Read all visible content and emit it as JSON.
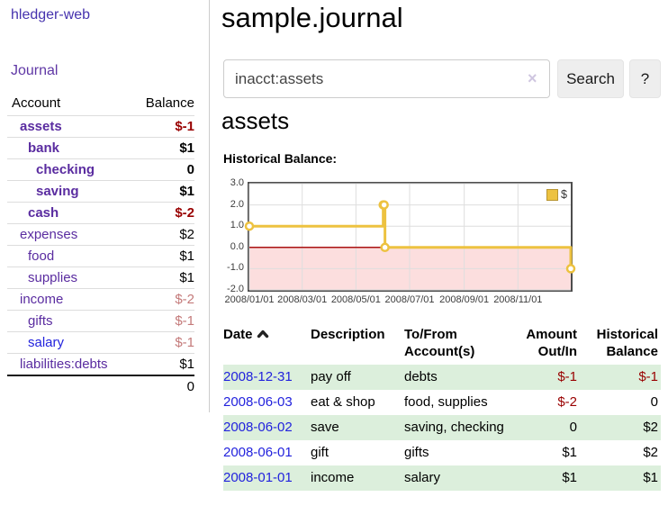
{
  "colors": {
    "link_purple": "#5a2ca0",
    "link_blue": "#2222dd",
    "neg_strong": "#990000",
    "neg_faded": "#c47a7a",
    "row_green": "#dcefdc",
    "series_gold": "#edc240",
    "chart_neg_bg": "#fcdede",
    "chart_zero": "#aa1111"
  },
  "sidebar": {
    "brand": "hledger-web",
    "journal_link": "Journal",
    "accounts": {
      "headers": {
        "account": "Account",
        "balance": "Balance"
      },
      "rows": [
        {
          "name": "assets",
          "depth": 1,
          "bold": true,
          "balance": "$-1"
        },
        {
          "name": "bank",
          "depth": 2,
          "bold": true,
          "balance": "$1"
        },
        {
          "name": "checking",
          "depth": 3,
          "bold": true,
          "balance": "0"
        },
        {
          "name": "saving",
          "depth": 3,
          "bold": true,
          "balance": "$1"
        },
        {
          "name": "cash",
          "depth": 2,
          "bold": true,
          "balance": "$-2"
        },
        {
          "name": "expenses",
          "depth": 1,
          "bold": false,
          "balance": "$2"
        },
        {
          "name": "food",
          "depth": 2,
          "bold": false,
          "balance": "$1"
        },
        {
          "name": "supplies",
          "depth": 2,
          "bold": false,
          "balance": "$1"
        },
        {
          "name": "income",
          "depth": 1,
          "bold": false,
          "balance": "$-2"
        },
        {
          "name": "gifts",
          "depth": 2,
          "bold": false,
          "balance": "$-1"
        },
        {
          "name": "salary",
          "depth": 2,
          "bold": false,
          "balance": "$-1",
          "link_style": "unvisited"
        },
        {
          "name": "liabilities:debts",
          "depth": 1,
          "bold": false,
          "balance": "$1"
        }
      ],
      "total": "0"
    }
  },
  "main": {
    "title": "sample.journal",
    "search": {
      "value": "inacct:assets",
      "clear_icon": "×",
      "search_button": "Search",
      "help_button": "?"
    },
    "account_heading": "assets",
    "chart_heading": "Historical Balance:"
  },
  "chart_data": {
    "type": "line",
    "step": true,
    "title": "Historical Balance:",
    "series": [
      {
        "name": "$",
        "color": "#edc240",
        "points": [
          [
            "2008-01-01",
            1.0
          ],
          [
            "2008-06-01",
            2.0
          ],
          [
            "2008-06-02",
            2.0
          ],
          [
            "2008-06-03",
            0.0
          ],
          [
            "2008-12-31",
            -1.0
          ]
        ]
      }
    ],
    "x_range": [
      "2008-01-01",
      "2008-12-31"
    ],
    "y_range": [
      -2.0,
      3.0
    ],
    "x_ticks": [
      "2008/01/01",
      "2008/03/01",
      "2008/05/01",
      "2008/07/01",
      "2008/09/01",
      "2008/11/01"
    ],
    "y_ticks": [
      3.0,
      2.0,
      1.0,
      0.0,
      -1.0,
      -2.0
    ],
    "grid": true,
    "negative_region_color": "#fcdede",
    "zero_line_color": "#aa1111",
    "legend": {
      "position": "top-right",
      "label": "$"
    }
  },
  "register": {
    "headers": [
      {
        "label": "Date",
        "sort": "ascending"
      },
      {
        "label": "Description"
      },
      {
        "label": "To/From Account(s)"
      },
      {
        "label": "Amount Out/In",
        "align": "right"
      },
      {
        "label": "Historical Balance",
        "align": "right"
      }
    ],
    "rows": [
      {
        "date": "2008-12-31",
        "description": "pay off",
        "accounts": "debts",
        "amount": "$-1",
        "balance": "$-1"
      },
      {
        "date": "2008-06-03",
        "description": "eat & shop",
        "accounts": "food, supplies",
        "amount": "$-2",
        "balance": "0"
      },
      {
        "date": "2008-06-02",
        "description": "save",
        "accounts": "saving, checking",
        "amount": "0",
        "balance": "$2"
      },
      {
        "date": "2008-06-01",
        "description": "gift",
        "accounts": "gifts",
        "amount": "$1",
        "balance": "$2"
      },
      {
        "date": "2008-01-01",
        "description": "income",
        "accounts": "salary",
        "amount": "$1",
        "balance": "$1"
      }
    ]
  }
}
